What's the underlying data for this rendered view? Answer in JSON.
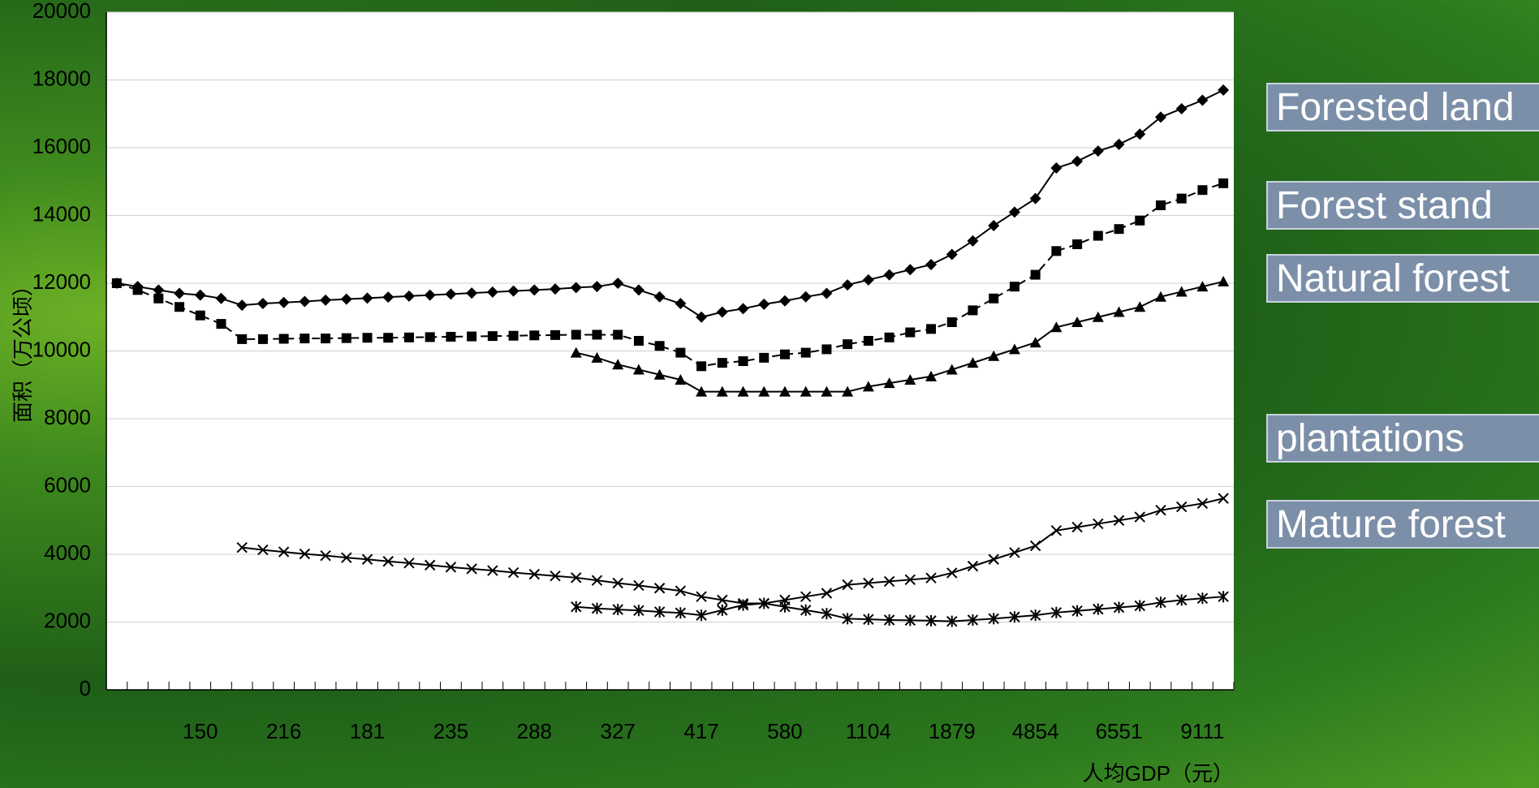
{
  "chart_data": {
    "type": "line",
    "y_label": "面积（万公顷）",
    "x_label": "人均GDP（元）",
    "categories": [
      null,
      null,
      null,
      null,
      "150",
      null,
      null,
      null,
      "216",
      null,
      null,
      null,
      "181",
      null,
      null,
      null,
      "235",
      null,
      null,
      null,
      "288",
      null,
      null,
      null,
      "327",
      null,
      null,
      null,
      "417",
      null,
      null,
      null,
      "580",
      null,
      null,
      null,
      "1104",
      null,
      null,
      null,
      "1879",
      null,
      null,
      null,
      "4854",
      null,
      null,
      null,
      "6551",
      null,
      null,
      null,
      "9111",
      null
    ],
    "ylim": [
      0,
      20000
    ],
    "yticks": [
      0,
      2000,
      4000,
      6000,
      8000,
      10000,
      12000,
      14000,
      16000,
      18000,
      20000
    ],
    "grid": true,
    "series": [
      {
        "name": "Forested land",
        "color": "#000000",
        "marker": "diamond",
        "dash": false,
        "values": [
          12000,
          11900,
          11800,
          11700,
          11650,
          11550,
          11350,
          11400,
          11430,
          11460,
          11500,
          11530,
          11560,
          11590,
          11620,
          11650,
          11680,
          11710,
          11740,
          11770,
          11800,
          11830,
          11870,
          11900,
          12000,
          11800,
          11600,
          11400,
          11000,
          11150,
          11250,
          11380,
          11480,
          11600,
          11700,
          11950,
          12100,
          12250,
          12400,
          12550,
          12850,
          13250,
          13700,
          14100,
          14500,
          15400,
          15600,
          15900,
          16100,
          16400,
          16900,
          17150,
          17400,
          17700
        ]
      },
      {
        "name": "Forest stand",
        "color": "#000000",
        "marker": "square",
        "dash": true,
        "values": [
          12000,
          11800,
          11550,
          11300,
          11050,
          10800,
          10350,
          10350,
          10360,
          10370,
          10370,
          10380,
          10390,
          10390,
          10400,
          10410,
          10420,
          10430,
          10440,
          10450,
          10460,
          10470,
          10480,
          10480,
          10480,
          10300,
          10150,
          9950,
          9550,
          9650,
          9700,
          9800,
          9900,
          9950,
          10050,
          10200,
          10300,
          10400,
          10550,
          10650,
          10850,
          11200,
          11550,
          11900,
          12250,
          12950,
          13150,
          13400,
          13600,
          13850,
          14300,
          14500,
          14750,
          14950
        ]
      },
      {
        "name": "Natural forest",
        "color": "#000000",
        "marker": "triangle",
        "dash": false,
        "values": [
          null,
          null,
          null,
          null,
          null,
          null,
          null,
          null,
          null,
          null,
          null,
          null,
          null,
          null,
          null,
          null,
          null,
          null,
          null,
          null,
          null,
          null,
          9950,
          9800,
          9600,
          9450,
          9300,
          9150,
          8800,
          8800,
          8800,
          8800,
          8800,
          8800,
          8800,
          8800,
          8950,
          9050,
          9150,
          9250,
          9450,
          9650,
          9850,
          10050,
          10250,
          10700,
          10850,
          11000,
          11150,
          11300,
          11600,
          11750,
          11900,
          12050
        ]
      },
      {
        "name": "plantations",
        "color": "#000000",
        "marker": "x",
        "dash": false,
        "values": [
          null,
          null,
          null,
          null,
          null,
          null,
          4200,
          4130,
          4070,
          4010,
          3960,
          3900,
          3850,
          3790,
          3740,
          3680,
          3620,
          3570,
          3520,
          3460,
          3410,
          3360,
          3310,
          3230,
          3150,
          3080,
          3000,
          2920,
          2750,
          2650,
          2550,
          2550,
          2650,
          2750,
          2850,
          3100,
          3150,
          3200,
          3250,
          3300,
          3450,
          3650,
          3850,
          4050,
          4250,
          4700,
          4800,
          4900,
          5000,
          5100,
          5300,
          5400,
          5500,
          5650
        ]
      },
      {
        "name": "Mature forest",
        "color": "#000000",
        "marker": "asterisk",
        "dash": false,
        "values": [
          null,
          null,
          null,
          null,
          null,
          null,
          null,
          null,
          null,
          null,
          null,
          null,
          null,
          null,
          null,
          null,
          null,
          null,
          null,
          null,
          null,
          null,
          2450,
          2400,
          2370,
          2340,
          2300,
          2270,
          2200,
          2350,
          2500,
          2550,
          2450,
          2350,
          2250,
          2100,
          2080,
          2060,
          2050,
          2040,
          2020,
          2060,
          2100,
          2150,
          2200,
          2280,
          2330,
          2380,
          2430,
          2480,
          2580,
          2650,
          2700,
          2750
        ]
      }
    ]
  }
}
